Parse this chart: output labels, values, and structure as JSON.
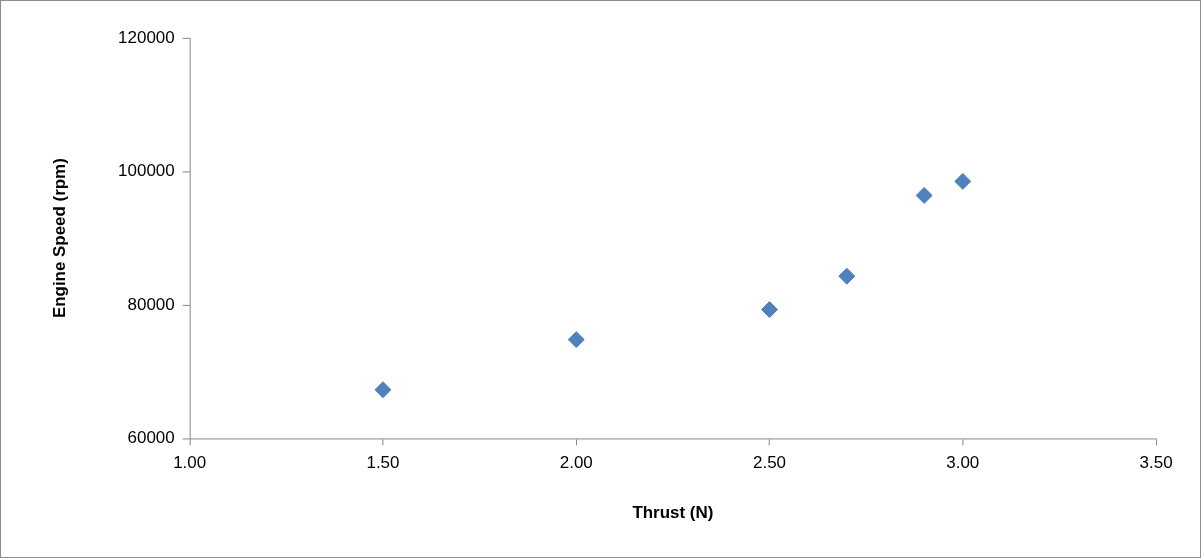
{
  "chart_data": {
    "type": "scatter",
    "xlabel": "Thrust (N)",
    "ylabel": "Engine Speed (rpm)",
    "x": [
      1.5,
      2.0,
      2.5,
      2.7,
      2.9,
      3.0
    ],
    "series": [
      {
        "color": "#4f81bd",
        "values": [
          67300,
          74800,
          79300,
          84300,
          96400,
          98500
        ]
      }
    ],
    "xlim": [
      1,
      3.5
    ],
    "xticks": [
      {
        "value": 1,
        "label": "1.00"
      },
      {
        "value": 1.5,
        "label": "1.50"
      },
      {
        "value": 2,
        "label": "2.00"
      },
      {
        "value": 2.5,
        "label": "2.50"
      },
      {
        "value": 3,
        "label": "3.00"
      },
      {
        "value": 3.5,
        "label": "3.50"
      }
    ],
    "ylim": [
      60000,
      120000
    ],
    "yticks": [
      60000,
      80000,
      100000,
      120000
    ],
    "grid": false,
    "legend": false,
    "marker": "diamond"
  }
}
